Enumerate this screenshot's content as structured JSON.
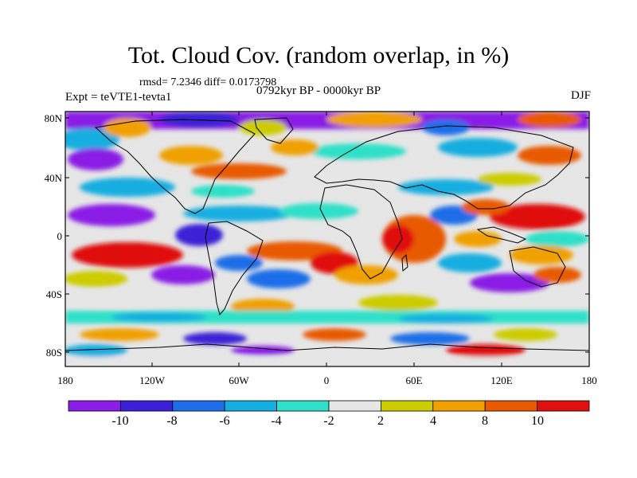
{
  "title": "Tot. Cloud Cov. (random overlap, in %)",
  "stats_line": "rmsd= 7.2346 diff= 0.0173798",
  "experiment": "Expt = teVTE1-tevta1",
  "period": "0792kyr BP - 0000kyr BP",
  "season": "DJF",
  "lat_labels": [
    "80N",
    "40N",
    "0",
    "40S",
    "80S"
  ],
  "lon_labels": [
    "180",
    "120W",
    "60W",
    "0",
    "60E",
    "120E",
    "180"
  ],
  "colorbar": {
    "levels": [
      "-10",
      "-8",
      "-6",
      "-4",
      "-2",
      "2",
      "4",
      "8",
      "10"
    ],
    "colors": [
      "#8a1ee6",
      "#3a20d6",
      "#1f6ee8",
      "#14aee0",
      "#2ee0c8",
      "#e6e6e6",
      "#cccc00",
      "#f0a000",
      "#e85a00",
      "#e01010"
    ]
  },
  "map_colors": {
    "neutral": "#e6e6e6",
    "coast": "#000000",
    "frame": "#000000"
  }
}
